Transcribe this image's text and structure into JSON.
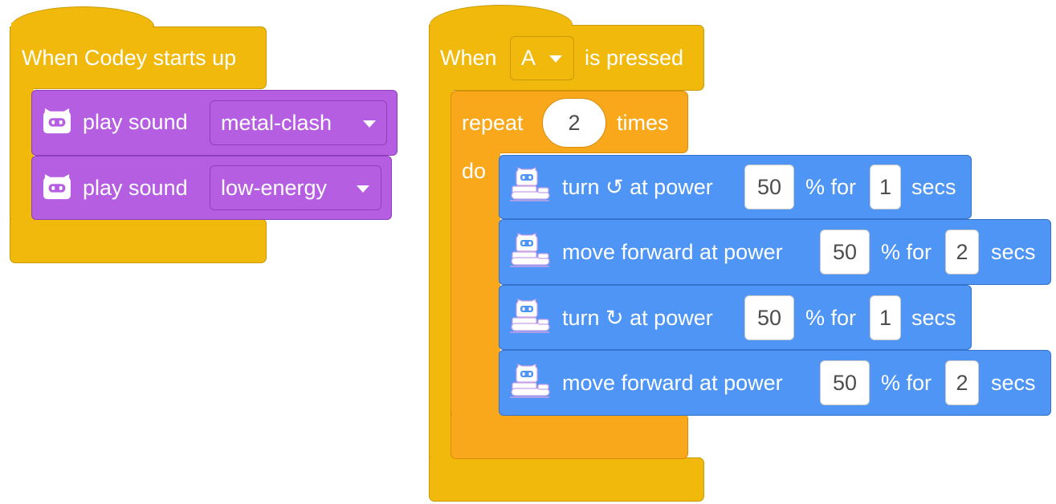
{
  "script1": {
    "hat_label": "When Codey starts up",
    "sound_label": "play sound",
    "sounds": [
      "metal-clash",
      "low-energy"
    ]
  },
  "script2": {
    "when_label": "When",
    "button_value": "A",
    "pressed_label": "is pressed",
    "repeat_label": "repeat",
    "repeat_count": "2",
    "times_label": "times",
    "do_label": "do",
    "steps": [
      {
        "prefix": "turn ",
        "rotation": "↺",
        "suffix": " at power",
        "power": "50",
        "pct_for": "% for",
        "seconds": "1",
        "secs": "secs"
      },
      {
        "label": "move forward at power",
        "power": "50",
        "pct_for": "% for",
        "seconds": "2",
        "secs": "secs"
      },
      {
        "prefix": "turn ",
        "rotation": "↻",
        "suffix": " at power",
        "power": "50",
        "pct_for": "% for",
        "seconds": "1",
        "secs": "secs"
      },
      {
        "label": "move forward at power",
        "power": "50",
        "pct_for": "% for",
        "seconds": "2",
        "secs": "secs"
      }
    ]
  },
  "icons": {
    "codey": "codey-robot-icon",
    "rover": "rocky-rover-icon",
    "dropdown": "chevron-down-icon"
  },
  "colors": {
    "event": "#f0b90b",
    "control": "#f9a81b",
    "sound": "#b65ee2",
    "motion": "#4e95f5"
  }
}
